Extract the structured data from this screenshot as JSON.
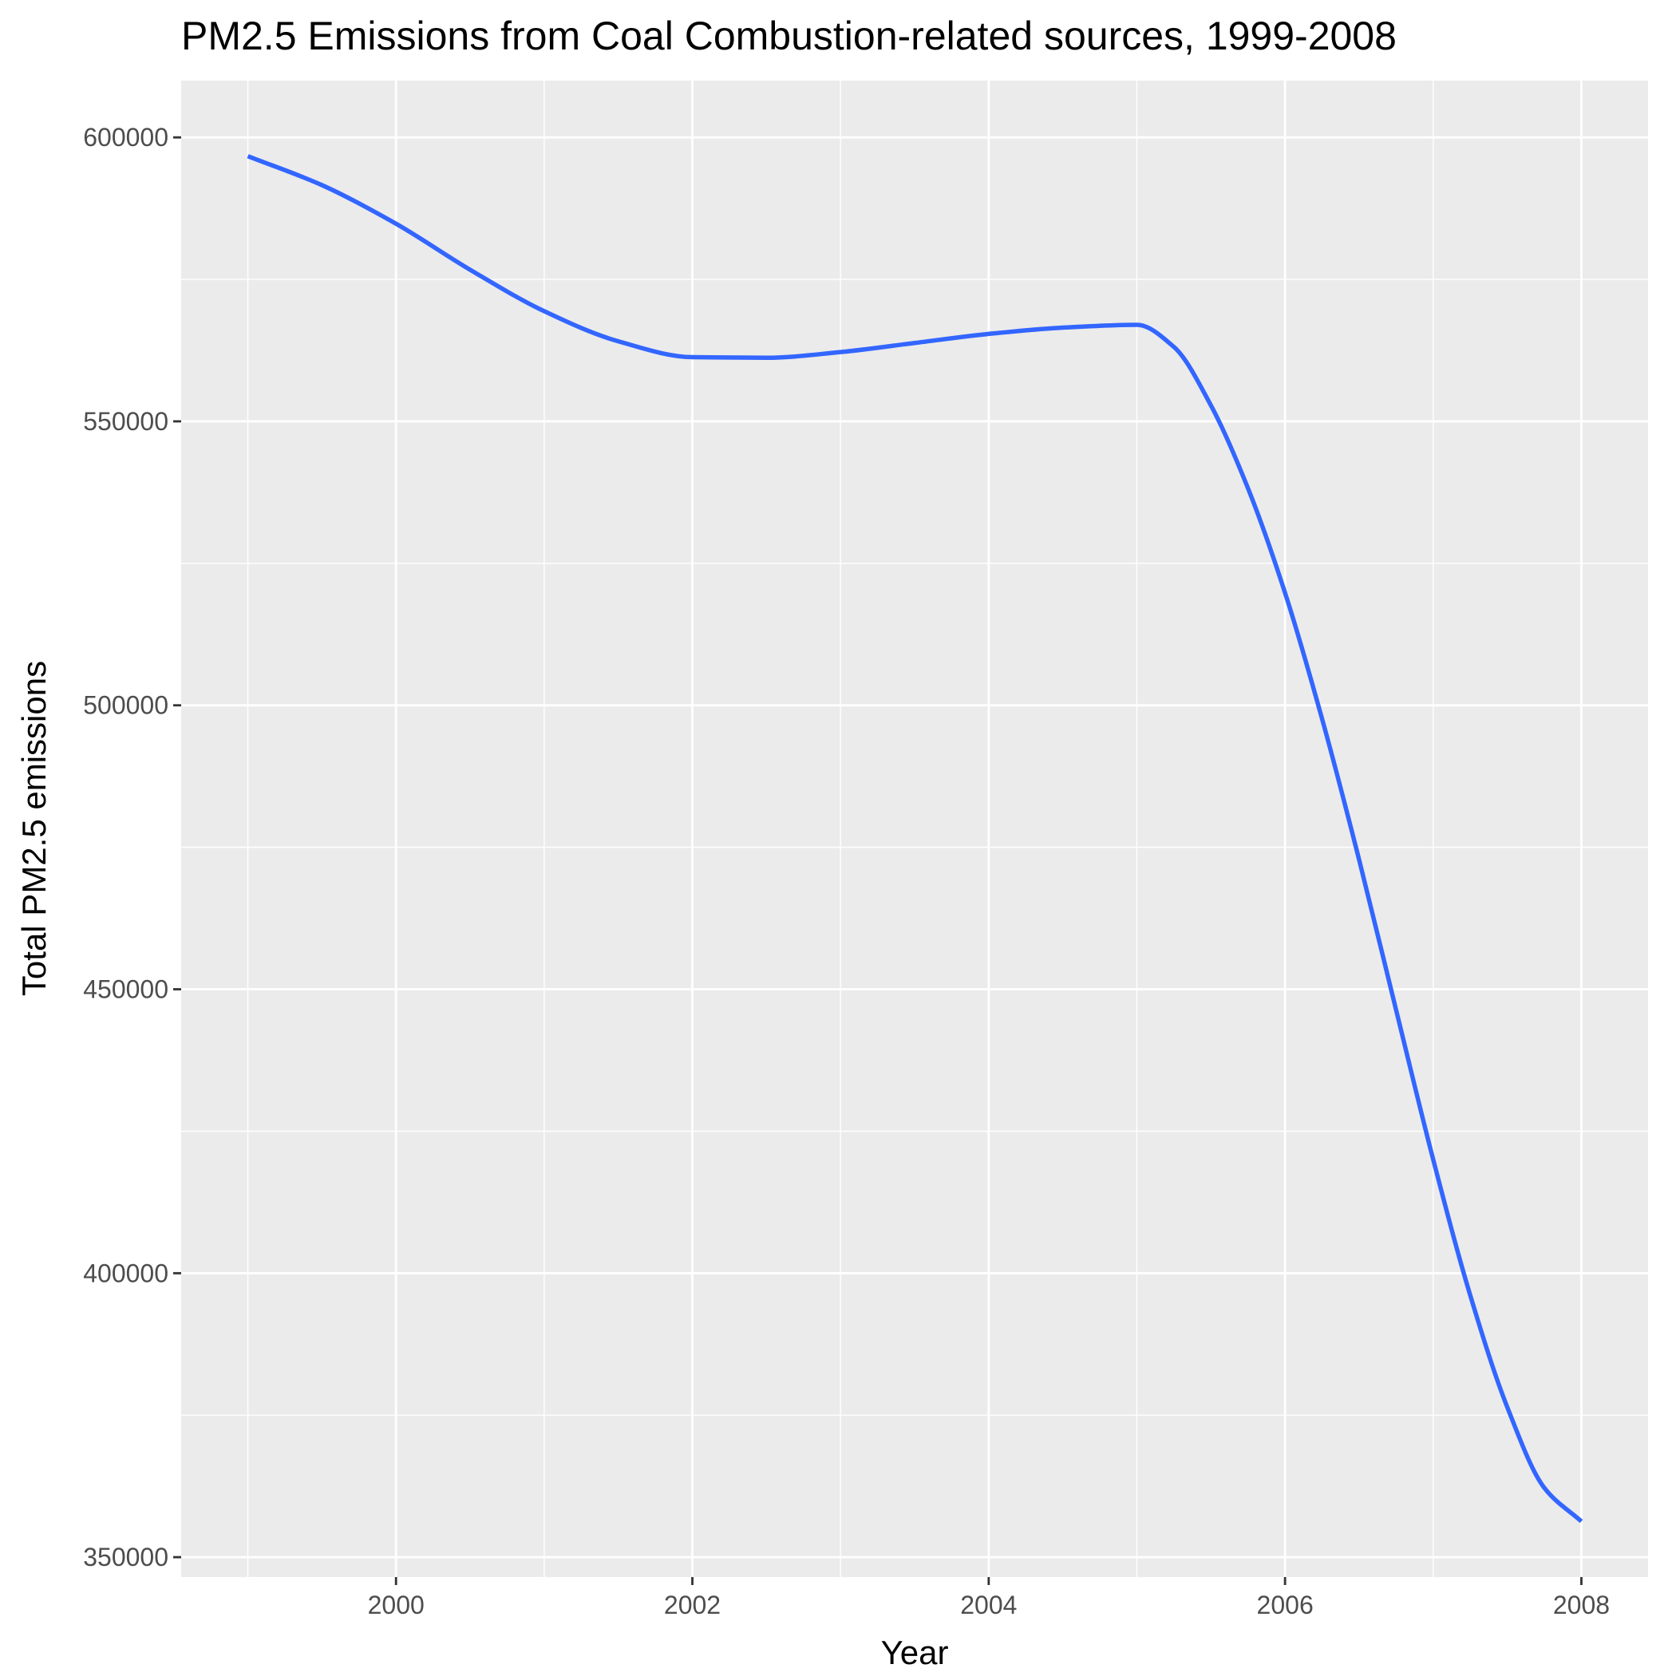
{
  "chart_data": {
    "type": "line",
    "title": "PM2.5 Emissions from Coal Combustion-related sources, 1999-2008",
    "xlabel": "Year",
    "ylabel": "Total PM2.5 emissions",
    "xlim": [
      1998.55,
      2008.45
    ],
    "ylim": [
      346500,
      610000
    ],
    "x_ticks": [
      2000,
      2002,
      2004,
      2006,
      2008
    ],
    "x_tick_labels": [
      "2000",
      "2002",
      "2004",
      "2006",
      "2008"
    ],
    "y_ticks": [
      350000,
      400000,
      450000,
      500000,
      550000,
      600000
    ],
    "y_tick_labels": [
      "350000",
      "400000",
      "450000",
      "500000",
      "550000",
      "600000"
    ],
    "grid": true,
    "legend": "none",
    "series": [
      {
        "color": "#3366FF",
        "x": [
          1999,
          1999.5,
          2000,
          2000.5,
          2001,
          2001.5,
          2002,
          2002.5,
          2003,
          2003.5,
          2004,
          2004.5,
          2005,
          2005.25,
          2005.5,
          2005.75,
          2006,
          2006.25,
          2006.5,
          2006.75,
          2007,
          2007.25,
          2007.5,
          2007.75,
          2008
        ],
        "y": [
          596700,
          591600,
          584800,
          576700,
          569400,
          564100,
          561300,
          561200,
          562200,
          563800,
          565400,
          566500,
          567000,
          563100,
          552800,
          538200,
          519800,
          497600,
          472800,
          446300,
          420000,
          396100,
          376400,
          362200,
          356300
        ]
      }
    ]
  },
  "colors": {
    "panel_background": "#EBEBEB",
    "grid_major": "#FFFFFF",
    "line": "#3366FF"
  }
}
